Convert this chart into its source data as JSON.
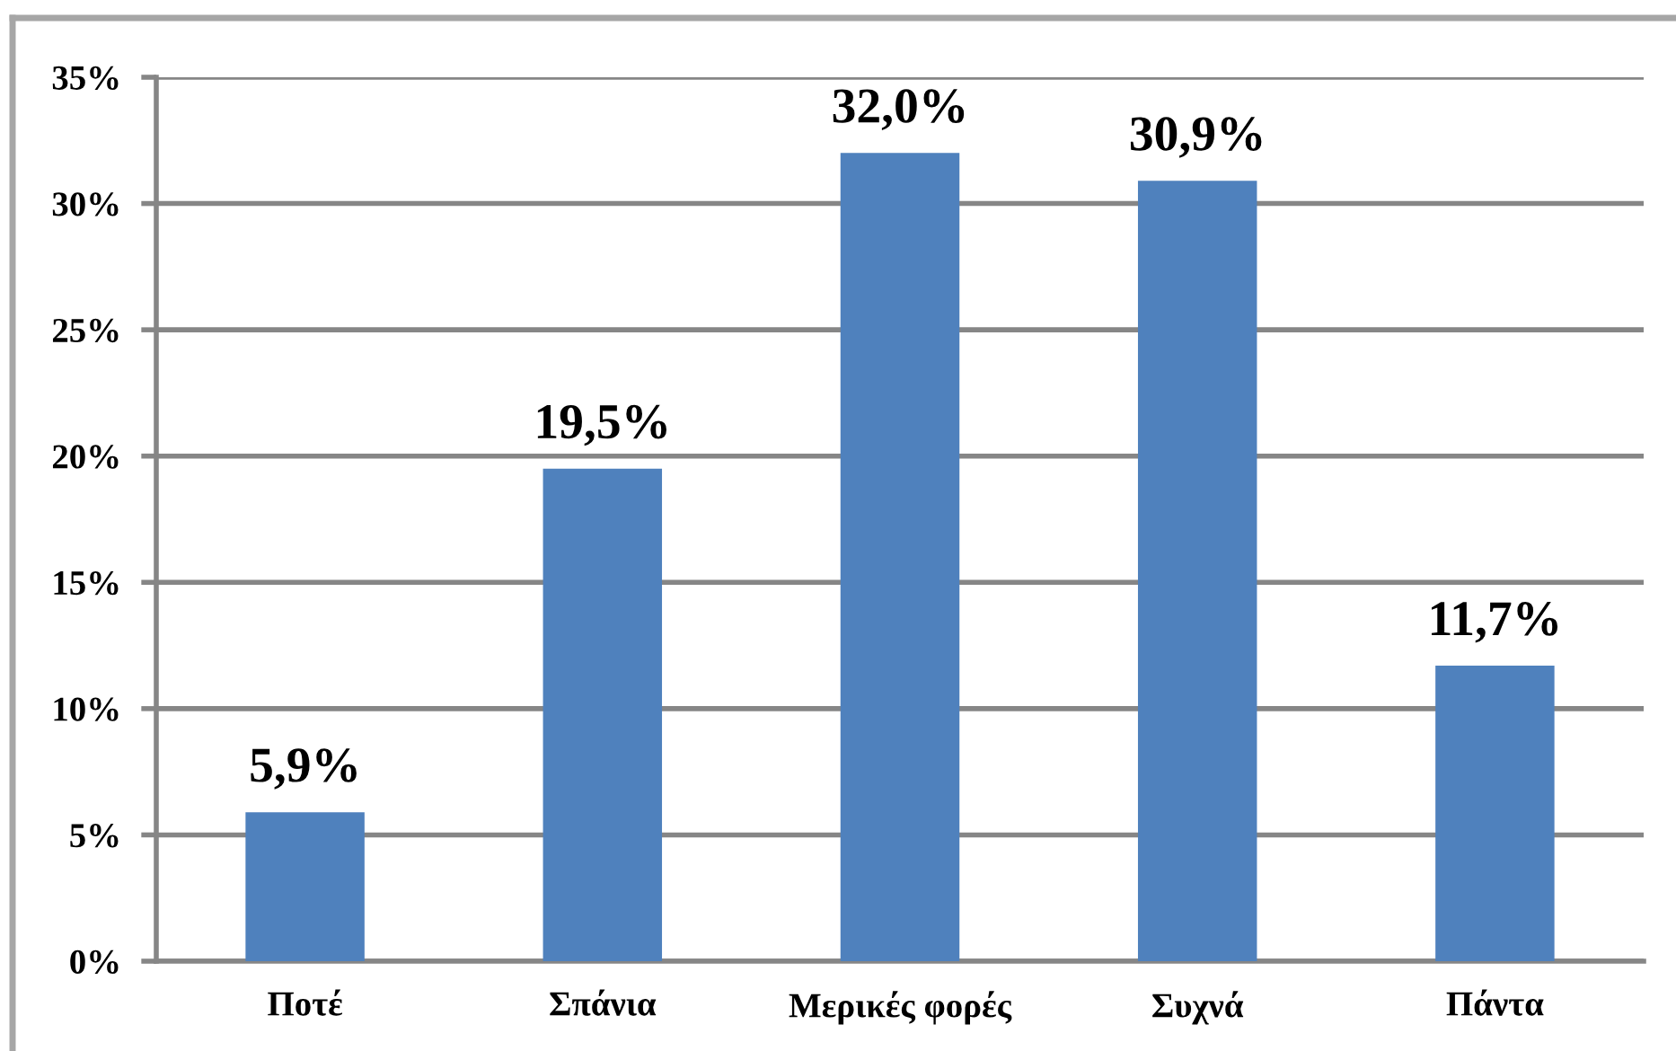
{
  "chart_data": {
    "type": "bar",
    "categories": [
      "Ποτέ",
      "Σπάνια",
      "Μερικές φορές",
      "Συχνά",
      "Πάντα"
    ],
    "values": [
      5.9,
      19.5,
      32.0,
      30.9,
      11.7
    ],
    "value_labels": [
      "5,9%",
      "19,5%",
      "32,0%",
      "30,9%",
      "11,7%"
    ],
    "color": "#4f81bd",
    "ylim": [
      0,
      35
    ],
    "yticks": [
      {
        "value": 0,
        "label": "0%"
      },
      {
        "value": 5,
        "label": "5%"
      },
      {
        "value": 10,
        "label": "10%"
      },
      {
        "value": 15,
        "label": "15%"
      },
      {
        "value": 20,
        "label": "20%"
      },
      {
        "value": 25,
        "label": "25%"
      },
      {
        "value": 30,
        "label": "30%"
      },
      {
        "value": 35,
        "label": "35%"
      }
    ],
    "grid": "y"
  }
}
